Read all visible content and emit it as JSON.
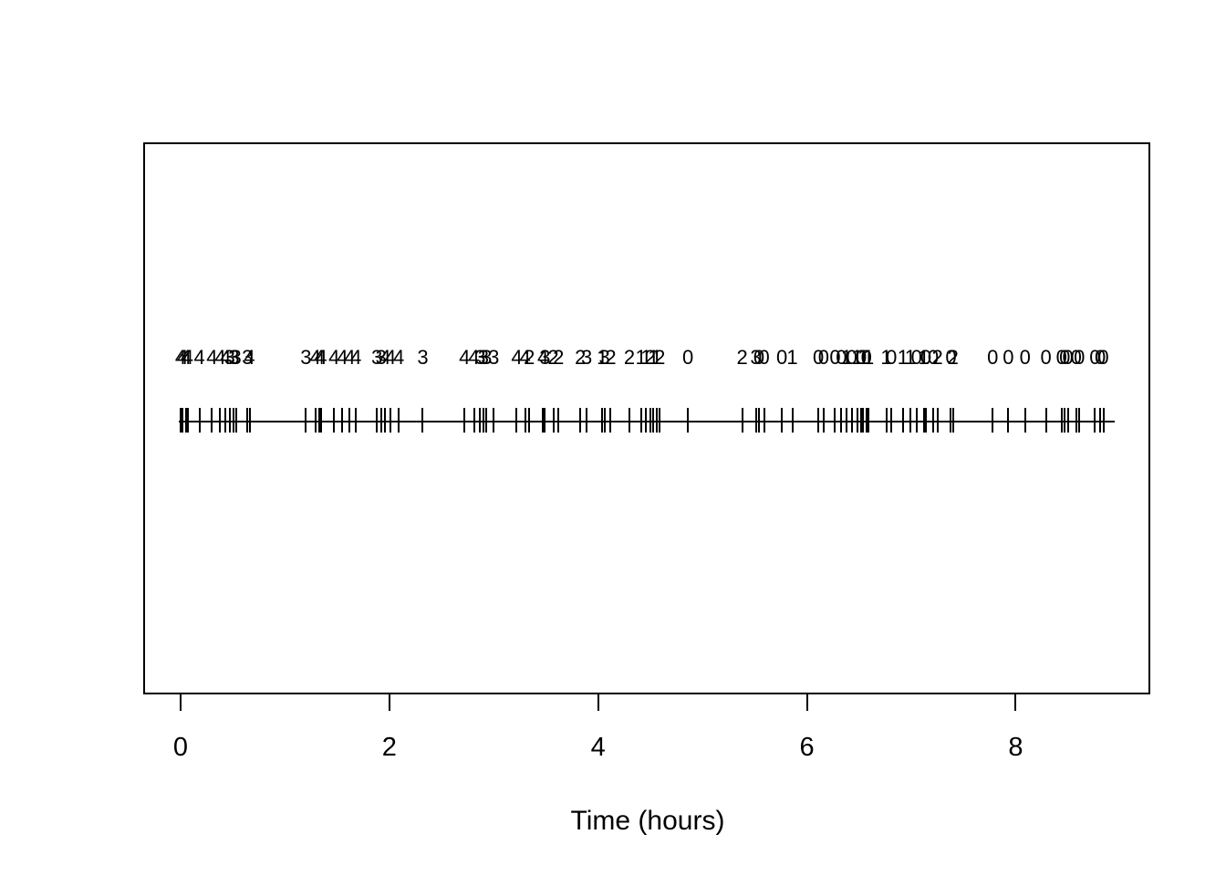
{
  "colors": {
    "foreground": "#000000",
    "background": "#ffffff"
  },
  "chart_data": {
    "type": "scatter",
    "subtype": "rug-event-plot",
    "title": "",
    "xlabel": "Time (hours)",
    "ylabel": "",
    "x_ticks": [
      0,
      2,
      4,
      6,
      8
    ],
    "xlim": [
      -0.01,
      8.94
    ],
    "grid": false,
    "legend": "none",
    "description": "Event times drawn as vertical tick marks on a horizontal line, each labelled above with a count (0-4)",
    "events": [
      {
        "t": 0.0,
        "label": "4"
      },
      {
        "t": 0.02,
        "label": "4"
      },
      {
        "t": 0.05,
        "label": "4"
      },
      {
        "t": 0.07,
        "label": "4"
      },
      {
        "t": 0.18,
        "label": "4"
      },
      {
        "t": 0.3,
        "label": "4"
      },
      {
        "t": 0.38,
        "label": "4"
      },
      {
        "t": 0.43,
        "label": "4"
      },
      {
        "t": 0.47,
        "label": "3"
      },
      {
        "t": 0.51,
        "label": "3"
      },
      {
        "t": 0.53,
        "label": "3"
      },
      {
        "t": 0.64,
        "label": "3"
      },
      {
        "t": 0.66,
        "label": "4"
      },
      {
        "t": 1.2,
        "label": "3"
      },
      {
        "t": 1.29,
        "label": "4"
      },
      {
        "t": 1.33,
        "label": "4"
      },
      {
        "t": 1.35,
        "label": "4"
      },
      {
        "t": 1.47,
        "label": "4"
      },
      {
        "t": 1.55,
        "label": "4"
      },
      {
        "t": 1.62,
        "label": "4"
      },
      {
        "t": 1.68,
        "label": "4"
      },
      {
        "t": 1.88,
        "label": "3"
      },
      {
        "t": 1.92,
        "label": "3"
      },
      {
        "t": 1.96,
        "label": "4"
      },
      {
        "t": 2.01,
        "label": "4"
      },
      {
        "t": 2.09,
        "label": "4"
      },
      {
        "t": 2.32,
        "label": "3"
      },
      {
        "t": 2.72,
        "label": "4"
      },
      {
        "t": 2.81,
        "label": "4"
      },
      {
        "t": 2.87,
        "label": "3"
      },
      {
        "t": 2.9,
        "label": "3"
      },
      {
        "t": 2.93,
        "label": "3"
      },
      {
        "t": 3.0,
        "label": "3"
      },
      {
        "t": 3.22,
        "label": "4"
      },
      {
        "t": 3.3,
        "label": "4"
      },
      {
        "t": 3.34,
        "label": "2"
      },
      {
        "t": 3.47,
        "label": "4"
      },
      {
        "t": 3.49,
        "label": "3"
      },
      {
        "t": 3.57,
        "label": "2"
      },
      {
        "t": 3.62,
        "label": "2"
      },
      {
        "t": 3.83,
        "label": "2"
      },
      {
        "t": 3.89,
        "label": "3"
      },
      {
        "t": 4.04,
        "label": "1"
      },
      {
        "t": 4.06,
        "label": "3"
      },
      {
        "t": 4.12,
        "label": "2"
      },
      {
        "t": 4.3,
        "label": "2"
      },
      {
        "t": 4.41,
        "label": "1"
      },
      {
        "t": 4.46,
        "label": "1"
      },
      {
        "t": 4.5,
        "label": "2"
      },
      {
        "t": 4.53,
        "label": "1"
      },
      {
        "t": 4.56,
        "label": "1"
      },
      {
        "t": 4.59,
        "label": "2"
      },
      {
        "t": 4.86,
        "label": "0"
      },
      {
        "t": 5.38,
        "label": "2"
      },
      {
        "t": 5.51,
        "label": "3"
      },
      {
        "t": 5.54,
        "label": "0"
      },
      {
        "t": 5.59,
        "label": "0"
      },
      {
        "t": 5.76,
        "label": "0"
      },
      {
        "t": 5.86,
        "label": "1"
      },
      {
        "t": 6.11,
        "label": "0"
      },
      {
        "t": 6.16,
        "label": "0"
      },
      {
        "t": 6.27,
        "label": "0"
      },
      {
        "t": 6.33,
        "label": "0"
      },
      {
        "t": 6.38,
        "label": "1"
      },
      {
        "t": 6.43,
        "label": "0"
      },
      {
        "t": 6.48,
        "label": "1"
      },
      {
        "t": 6.52,
        "label": "0"
      },
      {
        "t": 6.54,
        "label": "1"
      },
      {
        "t": 6.57,
        "label": "0"
      },
      {
        "t": 6.59,
        "label": "1"
      },
      {
        "t": 6.76,
        "label": "1"
      },
      {
        "t": 6.81,
        "label": "0"
      },
      {
        "t": 6.92,
        "label": "1"
      },
      {
        "t": 6.99,
        "label": "1"
      },
      {
        "t": 7.05,
        "label": "0"
      },
      {
        "t": 7.12,
        "label": "1"
      },
      {
        "t": 7.14,
        "label": "0"
      },
      {
        "t": 7.21,
        "label": "0"
      },
      {
        "t": 7.25,
        "label": "2"
      },
      {
        "t": 7.38,
        "label": "0"
      },
      {
        "t": 7.4,
        "label": "2"
      },
      {
        "t": 7.78,
        "label": "0"
      },
      {
        "t": 7.93,
        "label": "0"
      },
      {
        "t": 8.09,
        "label": "0"
      },
      {
        "t": 8.29,
        "label": "0"
      },
      {
        "t": 8.44,
        "label": "0"
      },
      {
        "t": 8.47,
        "label": "0"
      },
      {
        "t": 8.5,
        "label": "0"
      },
      {
        "t": 8.58,
        "label": "0"
      },
      {
        "t": 8.61,
        "label": "0"
      },
      {
        "t": 8.76,
        "label": "0"
      },
      {
        "t": 8.81,
        "label": "0"
      },
      {
        "t": 8.84,
        "label": "0"
      }
    ]
  }
}
